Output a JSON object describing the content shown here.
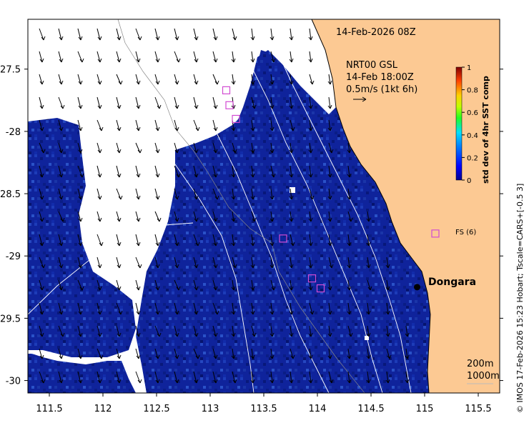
{
  "map": {
    "title": "14-Feb-2026 08Z",
    "product": "NRT00 GSL",
    "current_time": "14-Feb 18:00Z",
    "current_scale": "0.5m/s (1kt 6h)",
    "fs_label": "FS (6)",
    "place": "Dongara",
    "contour_labels": [
      "200m",
      "1000m"
    ],
    "credit": "© IMOS 17-Feb-2026 15:23 Hobart; Tscale=CARS+[-0.5 3]",
    "colors": {
      "land": "#fcc993",
      "ocean_base": "#0f239b",
      "no_data": "#ffffff",
      "marker": "#d24bd2"
    }
  },
  "axes": {
    "x_ticks": [
      "111.5",
      "112",
      "112.5",
      "113",
      "113.5",
      "114",
      "114.5",
      "115",
      "115.5"
    ],
    "x_values": [
      111.5,
      112,
      112.5,
      113,
      113.5,
      114,
      114.5,
      115,
      115.5
    ],
    "y_ticks": [
      "-27.5",
      "-28",
      "-28.5",
      "-29",
      "-29.5",
      "-30"
    ],
    "y_values": [
      -27.5,
      -28,
      -28.5,
      -29,
      -29.5,
      -30
    ],
    "xlim": [
      111.3,
      115.7
    ],
    "ylim": [
      -30.1,
      -27.1
    ]
  },
  "colorbar": {
    "label": "std dev of 4hr SST comp",
    "ticks": [
      "0",
      "0.2",
      "0.4",
      "0.6",
      "0.8",
      "1"
    ],
    "range": [
      0,
      1
    ]
  },
  "markers": [
    {
      "lon": 113.15,
      "lat": -27.67
    },
    {
      "lon": 113.18,
      "lat": -27.79
    },
    {
      "lon": 113.24,
      "lat": -27.9
    },
    {
      "lon": 113.68,
      "lat": -28.86
    },
    {
      "lon": 113.95,
      "lat": -29.18
    },
    {
      "lon": 114.03,
      "lat": -29.26
    }
  ],
  "fs_marker": {
    "lon": 115.1,
    "lat": -28.82
  },
  "dongara": {
    "lon": 114.93,
    "lat": -29.25
  }
}
